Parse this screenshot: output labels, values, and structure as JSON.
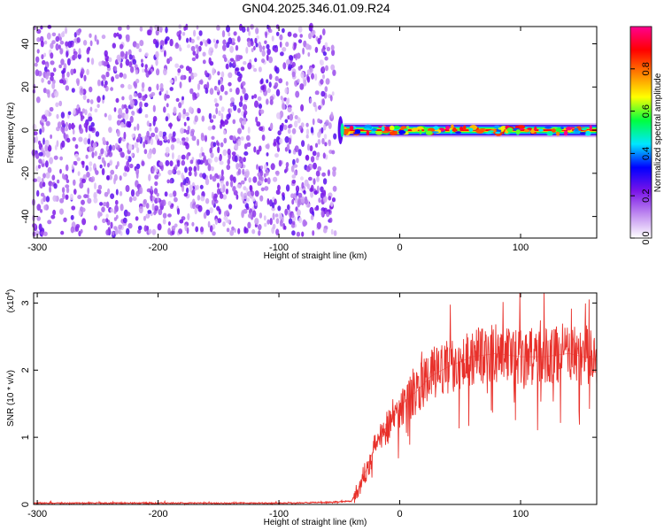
{
  "title": "GN04.2025.346.01.09.R24",
  "chart_data": [
    {
      "type": "heatmap",
      "xlabel": "Height of straight line (km)",
      "ylabel": "Frequency (Hz)",
      "xlim": [
        -303,
        163
      ],
      "ylim": [
        -50,
        48
      ],
      "xticks": [
        -300,
        -200,
        -100,
        0,
        100
      ],
      "xtick_labels": [
        "-300",
        "-200",
        "-100",
        "0",
        "100"
      ],
      "yticks": [
        -40,
        -20,
        0,
        20,
        40
      ],
      "ytick_labels": [
        "-40",
        "-20",
        "0",
        "20",
        "40"
      ],
      "colorbar": {
        "label": "Normalized spectral amplitude",
        "range": [
          0,
          1
        ],
        "ticks": [
          0.0,
          0.2,
          0.4,
          0.6,
          0.8
        ],
        "tick_labels": [
          "0.0",
          "0.2",
          "0.4",
          "0.6",
          "0.8"
        ],
        "colors": [
          "#ffffff",
          "#c08cf0",
          "#7a14e8",
          "#0000ff",
          "#00e6ff",
          "#00ff40",
          "#ffff00",
          "#ff8000",
          "#ff0000",
          "#ff0090"
        ]
      },
      "regions": [
        {
          "x_range": [
            -303,
            -52
          ],
          "f_range": [
            -50,
            48
          ],
          "amplitude": 0.12,
          "pattern": "broadband noise"
        },
        {
          "x_range": [
            -52,
            163
          ],
          "f_range": [
            -5,
            5
          ],
          "amplitude": 0.9,
          "pattern": "narrow band centered at 0 Hz"
        }
      ],
      "grid": false
    },
    {
      "type": "line",
      "xlabel": "Height of straight line (km)",
      "ylabel": "SNR (10 * v/v)",
      "y_multiplier_label": "(x10",
      "y_multiplier_exp": "4",
      "y_multiplier_close": ")",
      "xlim": [
        -303,
        163
      ],
      "ylim": [
        0,
        3.15
      ],
      "xticks": [
        -300,
        -200,
        -100,
        0,
        100
      ],
      "xtick_labels": [
        "-300",
        "-200",
        "-100",
        "0",
        "100"
      ],
      "yticks": [
        0,
        1,
        2,
        3
      ],
      "ytick_labels": [
        "0",
        "1",
        "2",
        "3"
      ],
      "color": "#e8302a",
      "x": [
        -303,
        -200,
        -100,
        -60,
        -40,
        -35,
        -28,
        -22,
        -15,
        -5,
        5,
        15,
        25,
        40,
        60,
        80,
        100,
        120,
        140,
        163
      ],
      "y": [
        0.02,
        0.02,
        0.02,
        0.03,
        0.05,
        0.2,
        0.5,
        0.8,
        1.05,
        1.3,
        1.55,
        1.7,
        1.9,
        2.05,
        2.2,
        2.25,
        2.2,
        2.2,
        2.25,
        2.15
      ],
      "grid": false
    }
  ]
}
